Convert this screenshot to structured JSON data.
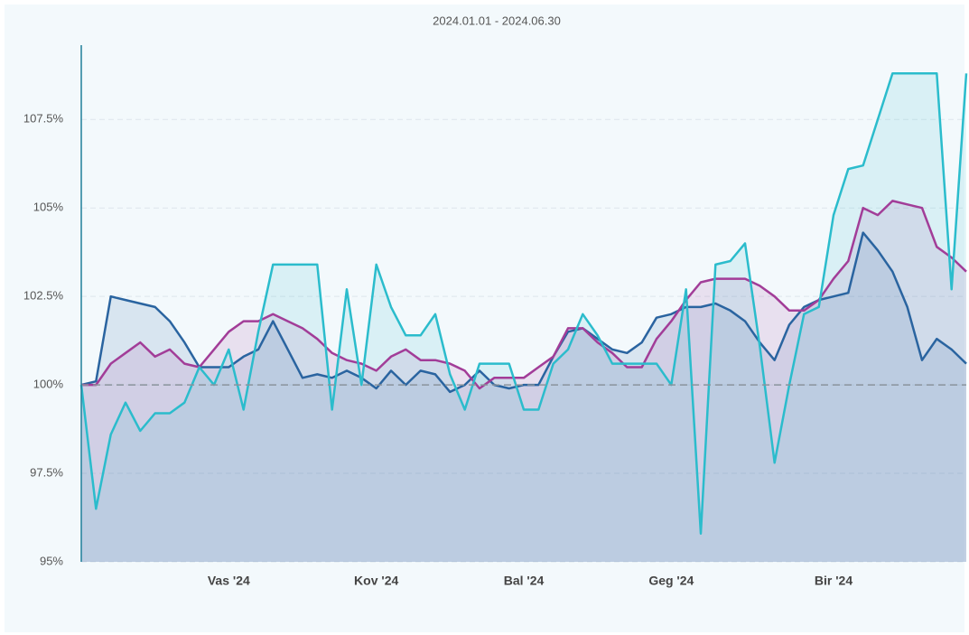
{
  "chart_data": {
    "type": "line",
    "subtitle": "2024.01.01 - 2024.06.30",
    "categories": [
      null,
      null,
      null,
      null,
      null,
      null,
      null,
      null,
      null,
      null,
      "Vas '24",
      null,
      null,
      null,
      null,
      null,
      null,
      null,
      null,
      null,
      "Kov '24",
      null,
      null,
      null,
      null,
      null,
      null,
      null,
      null,
      null,
      "Bal '24",
      null,
      null,
      null,
      null,
      null,
      null,
      null,
      null,
      null,
      "Geg '24",
      null,
      null,
      null,
      null,
      null,
      null,
      null,
      null,
      null,
      null,
      "Bir '24",
      null,
      null,
      null,
      null,
      null,
      null,
      null,
      null,
      null
    ],
    "series": [
      {
        "color": "#2a64a0",
        "values": [
          100,
          100.1,
          102.5,
          102.4,
          102.3,
          102.2,
          101.8,
          101.2,
          100.5,
          100.5,
          100.5,
          100.8,
          101.0,
          101.8,
          101.0,
          100.2,
          100.3,
          100.2,
          100.4,
          100.2,
          99.9,
          100.4,
          100.0,
          100.4,
          100.3,
          99.8,
          100.0,
          100.4,
          100.0,
          99.9,
          100.0,
          100.0,
          100.8,
          101.5,
          101.6,
          101.3,
          101.0,
          100.9,
          101.2,
          101.9,
          102.0,
          102.2,
          102.2,
          102.3,
          102.1,
          101.8,
          101.2,
          100.7,
          101.7,
          102.2,
          102.4,
          102.5,
          102.6,
          104.3,
          103.8,
          103.2,
          102.2,
          100.7,
          101.3,
          101.0,
          100.6
        ]
      },
      {
        "color": "#a23d98",
        "values": [
          100,
          100.0,
          100.6,
          100.9,
          101.2,
          100.8,
          101.0,
          100.6,
          100.5,
          101.0,
          101.5,
          101.8,
          101.8,
          102.0,
          101.8,
          101.6,
          101.3,
          100.9,
          100.7,
          100.6,
          100.4,
          100.8,
          101.0,
          100.7,
          100.7,
          100.6,
          100.4,
          99.9,
          100.2,
          100.2,
          100.2,
          100.5,
          100.8,
          101.6,
          101.6,
          101.2,
          100.9,
          100.5,
          100.5,
          101.3,
          101.8,
          102.4,
          102.9,
          103.0,
          103.0,
          103.0,
          102.8,
          102.5,
          102.1,
          102.1,
          102.4,
          103.0,
          103.5,
          105.0,
          104.8,
          105.2,
          105.1,
          105.0,
          103.9,
          103.6,
          103.2
        ]
      },
      {
        "color": "#2bbccc",
        "values": [
          100,
          96.5,
          98.6,
          99.5,
          98.7,
          99.2,
          99.2,
          99.5,
          100.5,
          100.0,
          101.0,
          99.3,
          101.5,
          103.4,
          103.4,
          103.4,
          103.4,
          99.3,
          102.7,
          100.0,
          103.4,
          102.2,
          101.4,
          101.4,
          102.0,
          100.3,
          99.3,
          100.6,
          100.6,
          100.6,
          99.3,
          99.3,
          100.6,
          101.0,
          102.0,
          101.4,
          100.6,
          100.6,
          100.6,
          100.6,
          100.0,
          102.7,
          95.8,
          103.4,
          103.5,
          104.0,
          101.1,
          97.8,
          100.0,
          102.0,
          102.2,
          104.8,
          106.1,
          106.2,
          107.5,
          108.8,
          108.8,
          108.8,
          108.8,
          102.7,
          108.8
        ]
      }
    ],
    "baseline": 100,
    "ylim": [
      95,
      109.6
    ],
    "yticks": [
      {
        "value": 95,
        "label": "95%"
      },
      {
        "value": 97.5,
        "label": "97.5%"
      },
      {
        "value": 100,
        "label": "100%"
      },
      {
        "value": 102.5,
        "label": "102.5%"
      },
      {
        "value": 105,
        "label": "105%"
      },
      {
        "value": 107.5,
        "label": "107.5%"
      }
    ],
    "grid": true
  }
}
